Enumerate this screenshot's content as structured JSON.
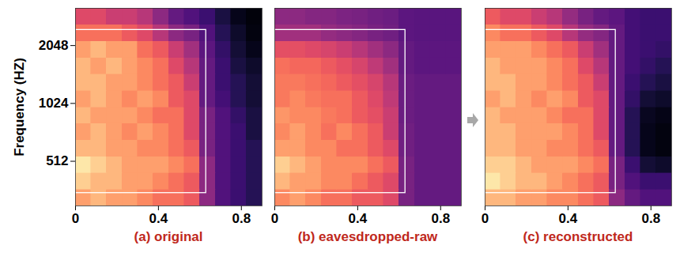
{
  "chart_data": [
    {
      "type": "heatmap",
      "title": "(a) original",
      "y_label": "Frequency (HZ)",
      "color": "magma",
      "log": "y",
      "xlim": [
        0,
        0.9
      ],
      "ylim": [
        300,
        3200
      ],
      "xticks": [
        0,
        0.4,
        0.8
      ],
      "yticks": [
        512,
        1024,
        2048
      ],
      "x_edges": [
        0,
        0.075,
        0.15,
        0.225,
        0.3,
        0.375,
        0.45,
        0.525,
        0.6,
        0.675,
        0.75,
        0.825,
        0.9
      ],
      "y_edges": [
        300,
        365,
        445,
        542,
        660,
        804,
        979,
        1193,
        1453,
        1769,
        2155,
        2625,
        3200
      ],
      "cell_range": [
        0,
        1
      ],
      "cells": [
        [
          0.8,
          0.85,
          0.8,
          0.8,
          0.75,
          0.7,
          0.7,
          0.65,
          0.4,
          0.25,
          0.2,
          0.15
        ],
        [
          0.9,
          0.85,
          0.85,
          0.8,
          0.8,
          0.75,
          0.7,
          0.65,
          0.4,
          0.25,
          0.2,
          0.15
        ],
        [
          0.95,
          0.9,
          0.85,
          0.8,
          0.8,
          0.8,
          0.75,
          0.7,
          0.4,
          0.25,
          0.2,
          0.15
        ],
        [
          0.85,
          0.85,
          0.8,
          0.8,
          0.75,
          0.75,
          0.7,
          0.65,
          0.35,
          0.25,
          0.2,
          0.15
        ],
        [
          0.8,
          0.85,
          0.8,
          0.75,
          0.8,
          0.75,
          0.7,
          0.6,
          0.35,
          0.25,
          0.2,
          0.12
        ],
        [
          0.85,
          0.8,
          0.8,
          0.8,
          0.75,
          0.7,
          0.7,
          0.6,
          0.35,
          0.25,
          0.18,
          0.12
        ],
        [
          0.8,
          0.85,
          0.8,
          0.75,
          0.8,
          0.75,
          0.65,
          0.6,
          0.3,
          0.22,
          0.15,
          0.1
        ],
        [
          0.85,
          0.85,
          0.8,
          0.8,
          0.75,
          0.7,
          0.65,
          0.55,
          0.3,
          0.2,
          0.15,
          0.1
        ],
        [
          0.85,
          0.8,
          0.85,
          0.8,
          0.75,
          0.7,
          0.6,
          0.5,
          0.3,
          0.2,
          0.12,
          0.08
        ],
        [
          0.8,
          0.85,
          0.8,
          0.8,
          0.7,
          0.65,
          0.55,
          0.45,
          0.28,
          0.18,
          0.1,
          0.05
        ],
        [
          0.7,
          0.7,
          0.7,
          0.65,
          0.6,
          0.5,
          0.4,
          0.35,
          0.25,
          0.15,
          0.08,
          0.03
        ],
        [
          0.6,
          0.6,
          0.55,
          0.55,
          0.5,
          0.4,
          0.3,
          0.25,
          0.2,
          0.12,
          0.05,
          0.02
        ]
      ],
      "box": {
        "x": [
          0,
          0.63
        ],
        "y": [
          350,
          2470
        ]
      }
    },
    {
      "type": "heatmap",
      "title": "(b) eavesdropped-raw",
      "color": "magma",
      "log": "y",
      "tick_labels": "x",
      "xlim": [
        0,
        0.9
      ],
      "ylim": [
        300,
        3200
      ],
      "xticks": [
        0,
        0.4,
        0.8
      ],
      "x_edges": [
        0,
        0.075,
        0.15,
        0.225,
        0.3,
        0.375,
        0.45,
        0.525,
        0.6,
        0.675,
        0.75,
        0.825,
        0.9
      ],
      "y_edges": [
        300,
        365,
        445,
        542,
        660,
        804,
        979,
        1193,
        1453,
        1769,
        2155,
        2625,
        3200
      ],
      "cell_range": [
        0,
        1
      ],
      "cells": [
        [
          0.75,
          0.8,
          0.75,
          0.7,
          0.7,
          0.65,
          0.65,
          0.6,
          0.35,
          0.3,
          0.3,
          0.3
        ],
        [
          0.85,
          0.8,
          0.8,
          0.75,
          0.75,
          0.7,
          0.65,
          0.6,
          0.35,
          0.3,
          0.3,
          0.3
        ],
        [
          0.9,
          0.85,
          0.8,
          0.75,
          0.75,
          0.75,
          0.7,
          0.65,
          0.35,
          0.3,
          0.3,
          0.3
        ],
        [
          0.8,
          0.8,
          0.75,
          0.75,
          0.7,
          0.7,
          0.65,
          0.6,
          0.33,
          0.3,
          0.3,
          0.3
        ],
        [
          0.75,
          0.8,
          0.75,
          0.7,
          0.75,
          0.7,
          0.65,
          0.55,
          0.33,
          0.3,
          0.3,
          0.3
        ],
        [
          0.78,
          0.75,
          0.75,
          0.72,
          0.7,
          0.65,
          0.62,
          0.55,
          0.32,
          0.3,
          0.3,
          0.3
        ],
        [
          0.72,
          0.75,
          0.72,
          0.7,
          0.7,
          0.65,
          0.6,
          0.52,
          0.32,
          0.3,
          0.3,
          0.3
        ],
        [
          0.72,
          0.72,
          0.7,
          0.68,
          0.65,
          0.62,
          0.58,
          0.5,
          0.32,
          0.3,
          0.3,
          0.3
        ],
        [
          0.7,
          0.68,
          0.68,
          0.65,
          0.62,
          0.58,
          0.52,
          0.45,
          0.3,
          0.28,
          0.28,
          0.28
        ],
        [
          0.62,
          0.62,
          0.6,
          0.58,
          0.55,
          0.5,
          0.45,
          0.4,
          0.3,
          0.28,
          0.28,
          0.28
        ],
        [
          0.45,
          0.45,
          0.45,
          0.42,
          0.4,
          0.38,
          0.35,
          0.33,
          0.28,
          0.27,
          0.27,
          0.27
        ],
        [
          0.4,
          0.4,
          0.38,
          0.38,
          0.36,
          0.35,
          0.33,
          0.32,
          0.28,
          0.27,
          0.27,
          0.27
        ]
      ],
      "box": {
        "x": [
          0,
          0.63
        ],
        "y": [
          350,
          2470
        ]
      }
    },
    {
      "type": "heatmap",
      "title": "(c) reconstructed",
      "color": "magma",
      "log": "y",
      "tick_labels": "x",
      "xlim": [
        0,
        0.9
      ],
      "ylim": [
        300,
        3200
      ],
      "xticks": [
        0,
        0.4,
        0.8
      ],
      "x_edges": [
        0,
        0.075,
        0.15,
        0.225,
        0.3,
        0.375,
        0.45,
        0.525,
        0.6,
        0.675,
        0.75,
        0.825,
        0.9
      ],
      "y_edges": [
        300,
        365,
        445,
        542,
        660,
        804,
        979,
        1193,
        1453,
        1769,
        2155,
        2625,
        3200
      ],
      "cell_range": [
        0,
        1
      ],
      "cells": [
        [
          0.85,
          0.85,
          0.8,
          0.8,
          0.75,
          0.75,
          0.7,
          0.65,
          0.4,
          0.3,
          0.25,
          0.25
        ],
        [
          0.95,
          0.9,
          0.85,
          0.85,
          0.8,
          0.75,
          0.7,
          0.65,
          0.35,
          0.25,
          0.2,
          0.2
        ],
        [
          0.9,
          0.9,
          0.85,
          0.8,
          0.8,
          0.8,
          0.75,
          0.7,
          0.35,
          0.2,
          0.1,
          0.08
        ],
        [
          0.85,
          0.85,
          0.8,
          0.8,
          0.75,
          0.75,
          0.7,
          0.65,
          0.3,
          0.15,
          0.05,
          0.03
        ],
        [
          0.85,
          0.85,
          0.8,
          0.8,
          0.8,
          0.75,
          0.7,
          0.6,
          0.3,
          0.15,
          0.05,
          0.03
        ],
        [
          0.85,
          0.8,
          0.8,
          0.8,
          0.75,
          0.7,
          0.7,
          0.6,
          0.3,
          0.15,
          0.06,
          0.04
        ],
        [
          0.8,
          0.85,
          0.8,
          0.75,
          0.8,
          0.75,
          0.65,
          0.6,
          0.3,
          0.18,
          0.1,
          0.08
        ],
        [
          0.85,
          0.85,
          0.8,
          0.8,
          0.75,
          0.7,
          0.65,
          0.55,
          0.3,
          0.2,
          0.15,
          0.12
        ],
        [
          0.85,
          0.8,
          0.8,
          0.8,
          0.75,
          0.7,
          0.6,
          0.5,
          0.3,
          0.22,
          0.18,
          0.15
        ],
        [
          0.8,
          0.8,
          0.8,
          0.75,
          0.7,
          0.65,
          0.55,
          0.45,
          0.3,
          0.22,
          0.2,
          0.18
        ],
        [
          0.75,
          0.7,
          0.7,
          0.65,
          0.6,
          0.5,
          0.42,
          0.38,
          0.3,
          0.22,
          0.2,
          0.2
        ],
        [
          0.65,
          0.6,
          0.6,
          0.55,
          0.5,
          0.42,
          0.35,
          0.3,
          0.28,
          0.22,
          0.2,
          0.2
        ]
      ],
      "box": {
        "x": [
          0,
          0.63
        ],
        "y": [
          350,
          2470
        ]
      }
    }
  ]
}
